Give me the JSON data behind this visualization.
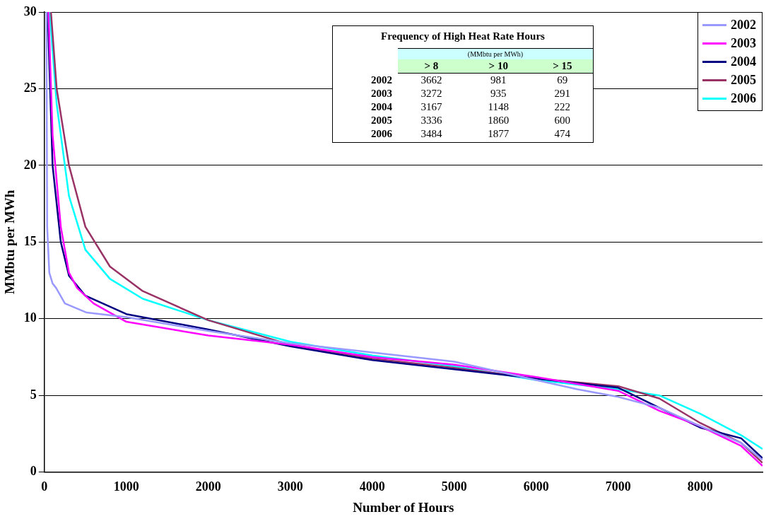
{
  "chart_data": {
    "type": "line",
    "xlabel": "Number of Hours",
    "ylabel": "MMbtu per MWh",
    "xlim": [
      0,
      8760
    ],
    "xticks": [
      0,
      1000,
      2000,
      3000,
      4000,
      5000,
      6000,
      7000,
      8000
    ],
    "ylim": [
      0,
      30
    ],
    "yticks": [
      0,
      5,
      10,
      15,
      20,
      25,
      30
    ],
    "grid": "y",
    "legend": "top right",
    "marker": "none",
    "line_style": "solid",
    "series": [
      {
        "name": "2002",
        "color": "#9999ff",
        "x": [
          25,
          34,
          60,
          100,
          144,
          250,
          517,
          1000,
          2000,
          3000,
          4000,
          5000,
          6000,
          6500,
          7000,
          7500,
          8000,
          8500,
          8760
        ],
        "values": [
          30,
          16,
          13,
          12.3,
          12,
          11,
          10.4,
          10.1,
          9.2,
          8.4,
          7.8,
          7.2,
          6.0,
          5.4,
          4.9,
          4.2,
          3.0,
          1.9,
          0.8
        ]
      },
      {
        "name": "2003",
        "color": "#ff00ff",
        "x": [
          50,
          100,
          200,
          300,
          400,
          600,
          1000,
          2000,
          3000,
          4000,
          5000,
          6000,
          7000,
          7500,
          8000,
          8500,
          8760
        ],
        "values": [
          30,
          22,
          16,
          13,
          12,
          11,
          9.8,
          8.9,
          8.3,
          7.5,
          7.0,
          6.2,
          5.3,
          4.0,
          3.0,
          1.7,
          0.4
        ]
      },
      {
        "name": "2004",
        "color": "#000080",
        "x": [
          40,
          100,
          200,
          300,
          500,
          1000,
          2000,
          3000,
          4000,
          5000,
          6000,
          7000,
          7500,
          8000,
          8500,
          8760
        ],
        "values": [
          30,
          20,
          15,
          12.8,
          11.5,
          10.3,
          9.3,
          8.2,
          7.3,
          6.7,
          6.1,
          5.5,
          4.2,
          2.9,
          2.2,
          0.9
        ]
      },
      {
        "name": "2005",
        "color": "#993366",
        "x": [
          80,
          150,
          300,
          500,
          800,
          1200,
          2000,
          3000,
          4000,
          5000,
          6000,
          7000,
          7500,
          8000,
          8500,
          8760
        ],
        "values": [
          30,
          25,
          20,
          16,
          13.4,
          11.8,
          9.9,
          8.3,
          7.4,
          6.8,
          6.1,
          5.6,
          4.8,
          3.2,
          1.9,
          0.6
        ]
      },
      {
        "name": "2006",
        "color": "#00ffff",
        "x": [
          65,
          150,
          300,
          500,
          800,
          1200,
          2000,
          3000,
          4000,
          5000,
          6000,
          7000,
          7500,
          8000,
          8500,
          8760
        ],
        "values": [
          30,
          24,
          18,
          14.5,
          12.6,
          11.3,
          9.9,
          8.5,
          7.6,
          6.9,
          6.0,
          5.4,
          5.0,
          3.8,
          2.4,
          1.5
        ]
      }
    ],
    "annotations": [
      "Frequency of High Heat Rate Hours",
      "(MMbtu per MWh)",
      "> 8",
      "> 10",
      "> 15",
      "2002",
      "3662",
      "981",
      "69",
      "2003",
      "3272",
      "935",
      "291",
      "2004",
      "3167",
      "1148",
      "222",
      "2005",
      "3336",
      "1860",
      "600",
      "2006",
      "3484",
      "1877",
      "474"
    ]
  }
}
